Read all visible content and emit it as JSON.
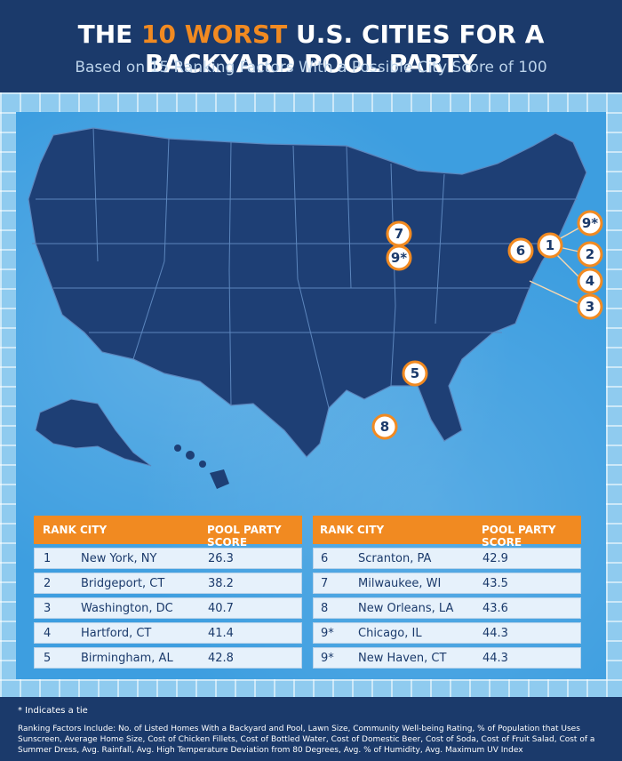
{
  "header": {
    "title_prefix": "THE ",
    "title_highlight": "10 WORST",
    "title_suffix": " U.S. CITIES FOR A BACKYARD POOL PARTY",
    "subtitle": "Based on 15 Ranking Factors With a Possible City Score of 100"
  },
  "colors": {
    "navy": "#1b3a6b",
    "orange": "#f18a21",
    "water": "#3d9ee0",
    "state": "#1e3f75"
  },
  "map_pins": [
    "7",
    "9*",
    "6",
    "1",
    "9*",
    "2",
    "4",
    "3",
    "5",
    "8"
  ],
  "table_headers": {
    "rank": "RANK",
    "city": "CITY",
    "score": "POOL PARTY SCORE"
  },
  "rankings_left": [
    {
      "rank": "1",
      "city": "New York, NY",
      "score": "26.3"
    },
    {
      "rank": "2",
      "city": "Bridgeport, CT",
      "score": "38.2"
    },
    {
      "rank": "3",
      "city": "Washington, DC",
      "score": "40.7"
    },
    {
      "rank": "4",
      "city": "Hartford, CT",
      "score": "41.4"
    },
    {
      "rank": "5",
      "city": "Birmingham, AL",
      "score": "42.8"
    }
  ],
  "rankings_right": [
    {
      "rank": "6",
      "city": "Scranton, PA",
      "score": "42.9"
    },
    {
      "rank": "7",
      "city": "Milwaukee, WI",
      "score": "43.5"
    },
    {
      "rank": "8",
      "city": "New Orleans, LA",
      "score": "43.6"
    },
    {
      "rank": "9*",
      "city": "Chicago, IL",
      "score": "44.3"
    },
    {
      "rank": "9*",
      "city": "New Haven, CT",
      "score": "44.3"
    }
  ],
  "footer": {
    "tie_note": "* Indicates a tie",
    "factors": "Ranking Factors Include: No. of Listed Homes With a Backyard and Pool, Lawn Size, Community Well-being Rating, % of Population that Uses Sunscreen, Average Home Size, Cost of Chicken Fillets, Cost of Bottled Water, Cost of Domestic Beer, Cost of Soda, Cost of Fruit Salad, Cost of a Summer Dress, Avg. Rainfall, Avg. High Temperature Deviation from 80 Degrees, Avg. % of Humidity, Avg. Maximum UV Index"
  }
}
